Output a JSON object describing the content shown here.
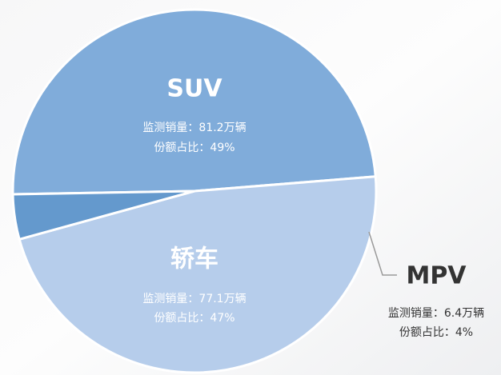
{
  "chart_data": {
    "type": "pie",
    "categories": [
      "SUV",
      "轿车",
      "MPV"
    ],
    "values": [
      49,
      47,
      4
    ],
    "value_labels": [
      "份额占比：49%",
      "份额占比：47%",
      "份额占比：4%"
    ],
    "sales_labels": [
      "监测销量：81.2万辆",
      "监测销量：77.1万辆",
      "监测销量：6.4万辆"
    ],
    "colors": [
      "#80acda",
      "#b6cdeb",
      "#6499cd"
    ]
  }
}
